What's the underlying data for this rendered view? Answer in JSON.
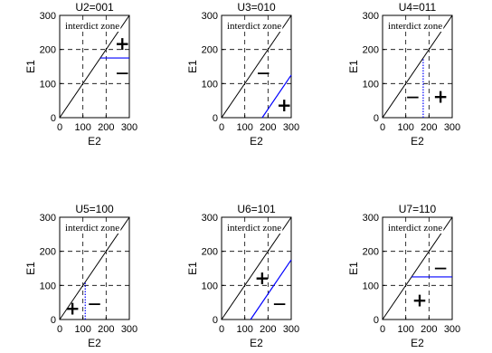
{
  "chart_data": [
    {
      "type": "line",
      "title": "U2=001",
      "xlabel": "E2",
      "ylabel": "E1",
      "xlim": [
        0,
        300
      ],
      "ylim": [
        0,
        300
      ],
      "xticks": [
        "0",
        "100",
        "200",
        "300"
      ],
      "yticks": [
        "0",
        "100",
        "200",
        "300"
      ],
      "grid": "dashed at 100 and 200",
      "annotation": "interdict zone",
      "diagonal": [
        [
          0,
          0
        ],
        [
          300,
          300
        ]
      ],
      "boundary": {
        "color": "#0000ff",
        "style": "solid",
        "points": [
          [
            175,
            175
          ],
          [
            300,
            175
          ]
        ]
      },
      "plus_marker": [
        270,
        215
      ],
      "minus_marker": [
        270,
        130
      ]
    },
    {
      "type": "line",
      "title": "U3=010",
      "xlabel": "E2",
      "ylabel": "E1",
      "xlim": [
        0,
        300
      ],
      "ylim": [
        0,
        300
      ],
      "xticks": [
        "0",
        "100",
        "200",
        "300"
      ],
      "yticks": [
        "0",
        "100",
        "200",
        "300"
      ],
      "grid": "dashed at 100 and 200",
      "annotation": "interdict zone",
      "diagonal": [
        [
          0,
          0
        ],
        [
          300,
          300
        ]
      ],
      "boundary": {
        "color": "#0000ff",
        "style": "solid",
        "points": [
          [
            175,
            0
          ],
          [
            300,
            125
          ]
        ]
      },
      "plus_marker": [
        270,
        35
      ],
      "minus_marker": [
        180,
        130
      ]
    },
    {
      "type": "line",
      "title": "U4=011",
      "xlabel": "E2",
      "ylabel": "E1",
      "xlim": [
        0,
        300
      ],
      "ylim": [
        0,
        300
      ],
      "xticks": [
        "0",
        "100",
        "200",
        "300"
      ],
      "yticks": [
        "0",
        "100",
        "200",
        "300"
      ],
      "grid": "dashed at 100 and 200",
      "annotation": "interdict zone",
      "diagonal": [
        [
          0,
          0
        ],
        [
          300,
          300
        ]
      ],
      "boundary": {
        "color": "#0000ff",
        "style": "dotted",
        "points": [
          [
            175,
            0
          ],
          [
            175,
            175
          ]
        ]
      },
      "plus_marker": [
        250,
        60
      ],
      "minus_marker": [
        130,
        60
      ]
    },
    {
      "type": "line",
      "title": "U5=100",
      "xlabel": "E2",
      "ylabel": "E1",
      "xlim": [
        0,
        300
      ],
      "ylim": [
        0,
        300
      ],
      "xticks": [
        "0",
        "100",
        "200",
        "300"
      ],
      "yticks": [
        "0",
        "100",
        "200",
        "300"
      ],
      "grid": "dashed at 100 and 200",
      "annotation": "interdict zone",
      "diagonal": [
        [
          0,
          0
        ],
        [
          300,
          300
        ]
      ],
      "boundary": {
        "color": "#0000ff",
        "style": "dotted",
        "points": [
          [
            110,
            0
          ],
          [
            110,
            110
          ]
        ]
      },
      "plus_marker": [
        55,
        30
      ],
      "minus_marker": [
        150,
        45
      ]
    },
    {
      "type": "line",
      "title": "U6=101",
      "xlabel": "E2",
      "ylabel": "E1",
      "xlim": [
        0,
        300
      ],
      "ylim": [
        0,
        300
      ],
      "xticks": [
        "0",
        "100",
        "200",
        "300"
      ],
      "yticks": [
        "0",
        "100",
        "200",
        "300"
      ],
      "grid": "dashed at 100 and 200",
      "annotation": "interdict zone",
      "diagonal": [
        [
          0,
          0
        ],
        [
          300,
          300
        ]
      ],
      "boundary": {
        "color": "#0000ff",
        "style": "solid",
        "points": [
          [
            125,
            0
          ],
          [
            300,
            175
          ]
        ]
      },
      "plus_marker": [
        175,
        120
      ],
      "minus_marker": [
        250,
        45
      ]
    },
    {
      "type": "line",
      "title": "U7=110",
      "xlabel": "E2",
      "ylabel": "E1",
      "xlim": [
        0,
        300
      ],
      "ylim": [
        0,
        300
      ],
      "xticks": [
        "0",
        "100",
        "200",
        "300"
      ],
      "yticks": [
        "0",
        "100",
        "200",
        "300"
      ],
      "grid": "dashed at 100 and 200",
      "annotation": "interdict zone",
      "diagonal": [
        [
          0,
          0
        ],
        [
          300,
          300
        ]
      ],
      "boundary": {
        "color": "#0000ff",
        "style": "solid",
        "points": [
          [
            125,
            125
          ],
          [
            300,
            125
          ]
        ]
      },
      "plus_marker": [
        160,
        55
      ],
      "minus_marker": [
        250,
        150
      ]
    }
  ],
  "signs": {
    "plus": "+",
    "minus": "—"
  }
}
